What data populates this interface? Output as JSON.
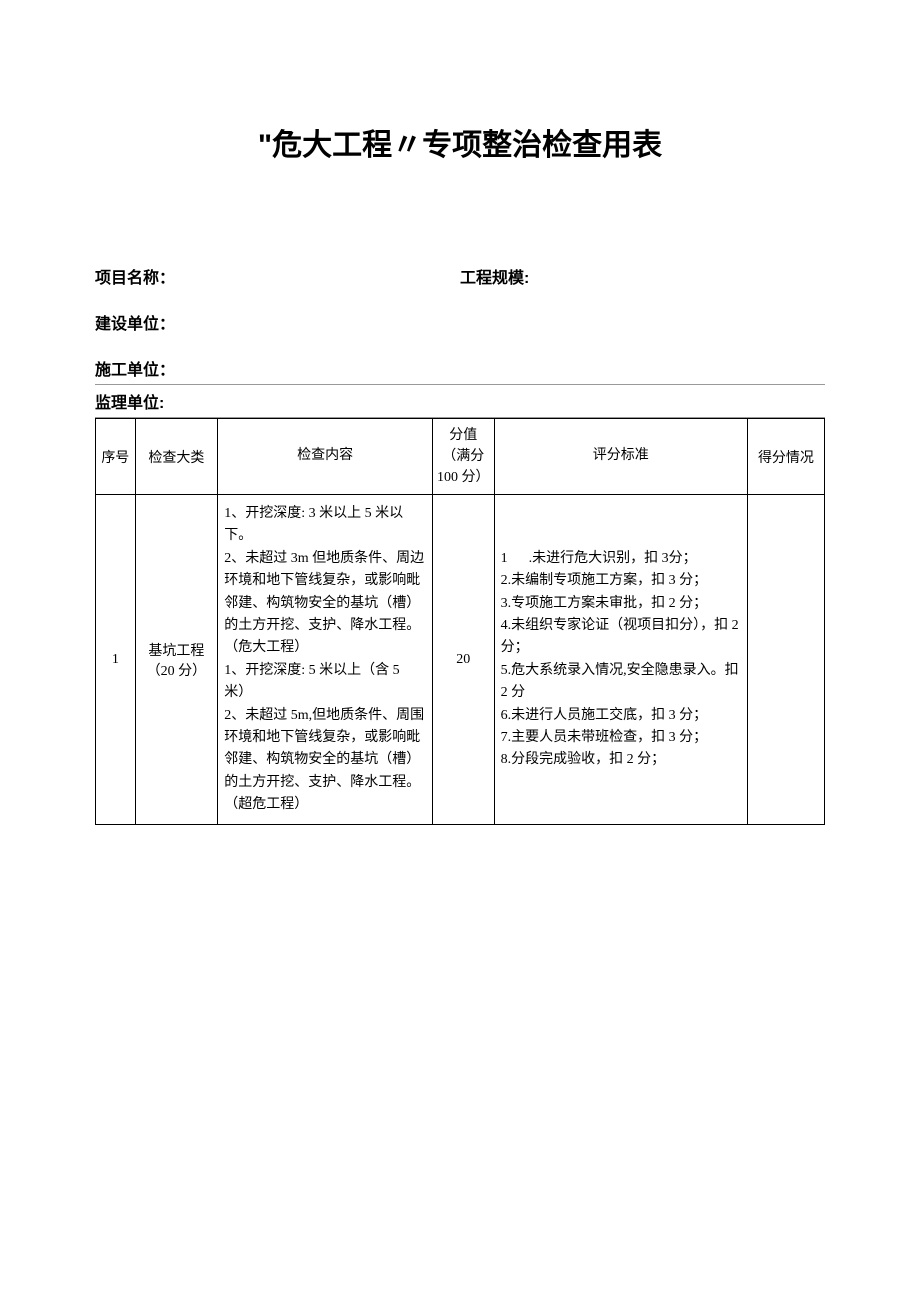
{
  "title": "\"危大工程〃专项整治检查用表",
  "fields": {
    "project_name_label": "项目名称：",
    "project_scale_label": "工程规模:",
    "construction_unit_label": "建设单位：",
    "contractor_unit_label": "施工单位：",
    "supervision_unit_label": "监理单位:"
  },
  "table": {
    "headers": {
      "seq": "序号",
      "type": "检查大类",
      "content": "检查内容",
      "score": "分值（满分100 分）",
      "standard": "评分标准",
      "result": "得分情况"
    },
    "rows": [
      {
        "seq": "1",
        "type": "基坑工程（20 分）",
        "content": "1、开挖深度: 3 米以上 5 米以下。\n2、未超过 3m 但地质条件、周边环境和地下管线复杂，或影响毗邻建、构筑物安全的基坑（槽）的土方开挖、支护、降水工程。\n（危大工程）\n1、开挖深度: 5 米以上（含 5米）\n2、未超过 5m,但地质条件、周围环境和地下管线复杂，或影响毗邻建、构筑物安全的基坑（槽）的土方开挖、支护、降水工程。\n（超危工程）",
        "score": "20",
        "standard": "1      .未进行危大识别，扣 3分；\n2.未编制专项施工方案，扣 3 分；\n3.专项施工方案未审批，扣 2 分；\n4.未组织专家论证（视项目扣分），扣 2 分；\n5.危大系统录入情况,安全隐患录入。扣 2 分\n6.未进行人员施工交底，扣 3 分；\n7.主要人员未带班检查，扣 3 分；\n8.分段完成验收，扣 2 分；",
        "result": ""
      }
    ]
  },
  "colors": {
    "background": "#ffffff",
    "text": "#000000",
    "border": "#000000",
    "underline": "#999999"
  },
  "fonts": {
    "title_size": 30,
    "body_size": 16,
    "table_size": 14
  }
}
